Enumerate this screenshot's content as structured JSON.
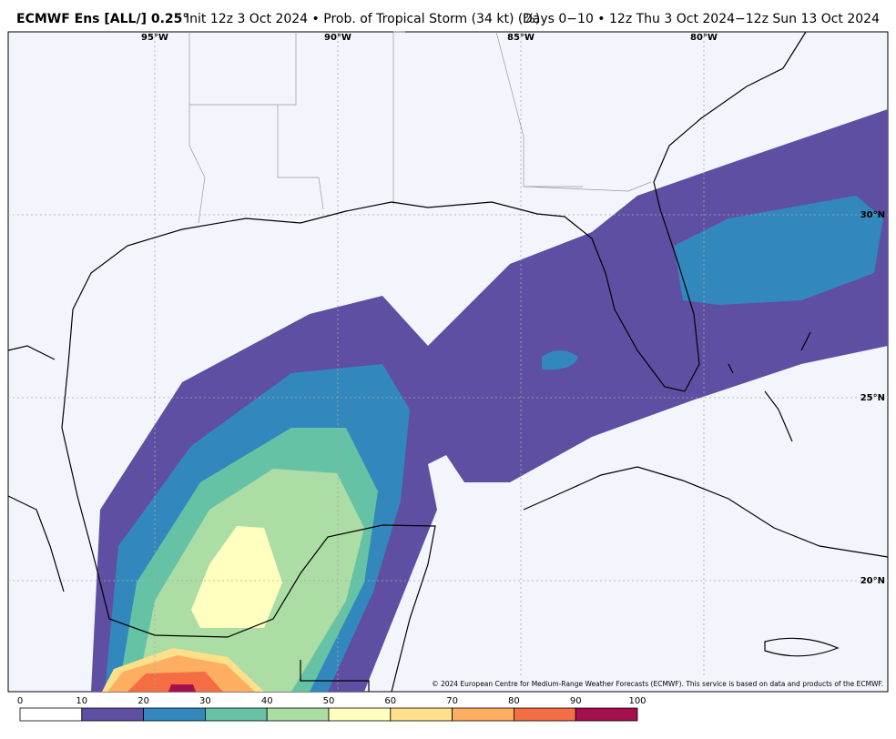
{
  "header": {
    "title_bold": "ECMWF Ens [ALL/] 0.25°",
    "title_rest": "Init 12z 3 Oct 2024 • Prob. of Tropical Storm (34 kt) (%)",
    "valid": "Days 0−10 • 12z Thu 3 Oct 2024−12z Sun 13 Oct 2024"
  },
  "map": {
    "lon_labels": [
      "95°W",
      "90°W",
      "85°W",
      "80°W"
    ],
    "lat_labels": [
      "30°N",
      "25°N",
      "20°N"
    ],
    "credit": "© 2024 European Centre for Medium-Range Weather Forecasts (ECMWF). This service is based on data and products of the ECMWF."
  },
  "colorbar": {
    "ticks": [
      0,
      10,
      20,
      30,
      40,
      50,
      60,
      70,
      80,
      90,
      100
    ],
    "colors": [
      "#ffffff",
      "#5e4fa2",
      "#3288bd",
      "#66c2a5",
      "#abdda4",
      "#ffffbf",
      "#fee08b",
      "#fdae61",
      "#f46d43",
      "#a50f4e"
    ]
  }
}
